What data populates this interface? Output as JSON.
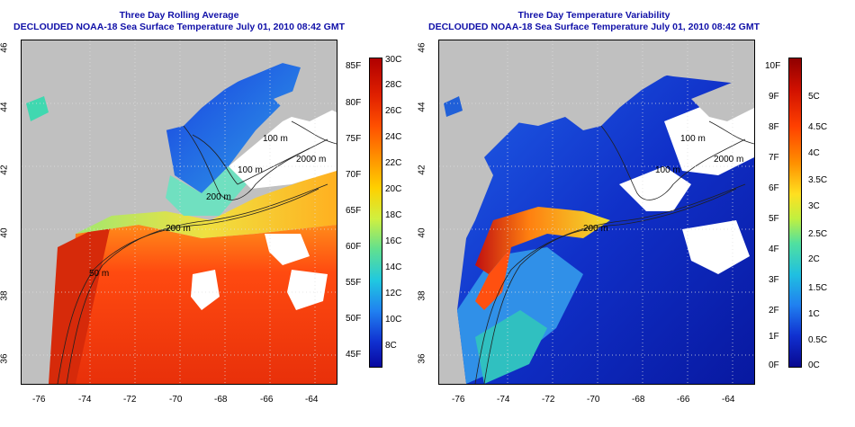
{
  "left_panel": {
    "title": "Three Day Rolling Average",
    "subtitle": "DECLOUDED NOAA-18 Sea Surface Temperature July 01, 2010 08:42 GMT",
    "contour_labels": [
      "100 m",
      "2000 m",
      "100 m",
      "200 m",
      "50 m",
      "200 m"
    ],
    "colorbar": {
      "fahrenheit": [
        "85F",
        "80F",
        "75F",
        "70F",
        "65F",
        "60F",
        "55F",
        "50F",
        "45F"
      ],
      "celsius": [
        "30C",
        "28C",
        "26C",
        "24C",
        "22C",
        "20C",
        "18C",
        "16C",
        "14C",
        "12C",
        "10C",
        "8C"
      ]
    }
  },
  "right_panel": {
    "title": "Three Day Temperature Variability",
    "subtitle": "DECLOUDED NOAA-18 Sea Surface Temperature July 01, 2010 08:42 GMT",
    "contour_labels": [
      "100 m",
      "2000 m",
      "100 m",
      "200 m"
    ],
    "colorbar": {
      "fahrenheit": [
        "10F",
        "9F",
        "8F",
        "7F",
        "6F",
        "5F",
        "4F",
        "3F",
        "2F",
        "1F",
        "0F"
      ],
      "celsius": [
        "5C",
        "4.5C",
        "4C",
        "3.5C",
        "3C",
        "2.5C",
        "2C",
        "1.5C",
        "1C",
        "0.5C",
        "0C"
      ]
    }
  },
  "axes": {
    "lon_ticks": [
      "-76",
      "-74",
      "-72",
      "-70",
      "-68",
      "-66",
      "-64"
    ],
    "lat_ticks": [
      "46",
      "44",
      "42",
      "40",
      "38",
      "36"
    ]
  },
  "colors": {
    "land": "#c0c0c0",
    "title_blue": "#1010a8"
  }
}
